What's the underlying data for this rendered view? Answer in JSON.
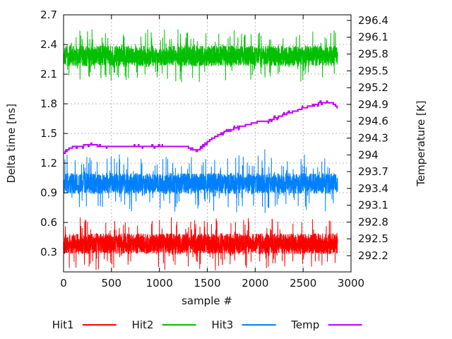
{
  "chart_data": {
    "type": "line",
    "title": "",
    "xlabel": "sample #",
    "ylabel_left": "Delta time [ns]",
    "ylabel_right": "Temperature [K]",
    "grid": true,
    "legend_position": "below",
    "x_range": [
      0,
      3000
    ],
    "y_left_range": [
      0.1,
      2.7
    ],
    "y_right_range": [
      291.91,
      296.5
    ],
    "x_tick_labels": [
      "0",
      "500",
      "1000",
      "1500",
      "2000",
      "2500",
      "3000"
    ],
    "y_left_tick_labels": [
      "0.3",
      "0.6",
      "0.9",
      "1.2",
      "1.5",
      "1.8",
      "2.1",
      "2.4",
      "2.7"
    ],
    "y_right_tick_labels": [
      "292.2",
      "292.5",
      "292.8",
      "293.1",
      "293.4",
      "293.7",
      "294",
      "294.3",
      "294.6",
      "294.9",
      "295.2",
      "295.5",
      "295.8",
      "296.1",
      "296.4"
    ],
    "n_samples": 2860,
    "series": [
      {
        "name": "Hit1",
        "color": "#ff0000",
        "axis": "left",
        "kind": "noise",
        "mean": 0.385,
        "core": 0.105,
        "spike_max": 0.27,
        "spike_prob": 0.055
      },
      {
        "name": "Hit2",
        "color": "#00c000",
        "axis": "left",
        "kind": "noise",
        "mean": 2.285,
        "core": 0.105,
        "spike_max": 0.27,
        "spike_prob": 0.055
      },
      {
        "name": "Hit3",
        "color": "#0080ff",
        "axis": "left",
        "kind": "noise",
        "mean": 0.995,
        "core": 0.105,
        "spike_max": 0.3,
        "spike_prob": 0.055,
        "feature_spikes": [
          [
            2100,
            1.34
          ]
        ]
      },
      {
        "name": "Temp",
        "color": "#c000ff",
        "axis": "right",
        "kind": "step",
        "quantum_k": 0.03,
        "keypoints": [
          [
            0,
            294.02
          ],
          [
            50,
            294.1
          ],
          [
            120,
            294.16
          ],
          [
            300,
            294.17
          ],
          [
            500,
            294.15
          ],
          [
            700,
            294.16
          ],
          [
            900,
            294.15
          ],
          [
            1100,
            294.16
          ],
          [
            1280,
            294.15
          ],
          [
            1340,
            294.11
          ],
          [
            1390,
            294.07
          ],
          [
            1440,
            294.12
          ],
          [
            1470,
            294.19
          ],
          [
            1560,
            294.3
          ],
          [
            1680,
            294.41
          ],
          [
            1800,
            294.48
          ],
          [
            1930,
            294.54
          ],
          [
            2050,
            294.6
          ],
          [
            2120,
            294.6
          ],
          [
            2220,
            294.66
          ],
          [
            2320,
            294.73
          ],
          [
            2420,
            294.78
          ],
          [
            2500,
            294.83
          ],
          [
            2590,
            294.88
          ],
          [
            2670,
            294.92
          ],
          [
            2730,
            294.94
          ],
          [
            2790,
            294.94
          ],
          [
            2830,
            294.9
          ],
          [
            2860,
            294.84
          ]
        ]
      }
    ],
    "legend": {
      "entries": [
        {
          "label": "Hit1",
          "color": "#ff0000"
        },
        {
          "label": "Hit2",
          "color": "#00c000"
        },
        {
          "label": "Hit3",
          "color": "#0080ff"
        },
        {
          "label": "Temp",
          "color": "#c000ff"
        }
      ]
    }
  }
}
